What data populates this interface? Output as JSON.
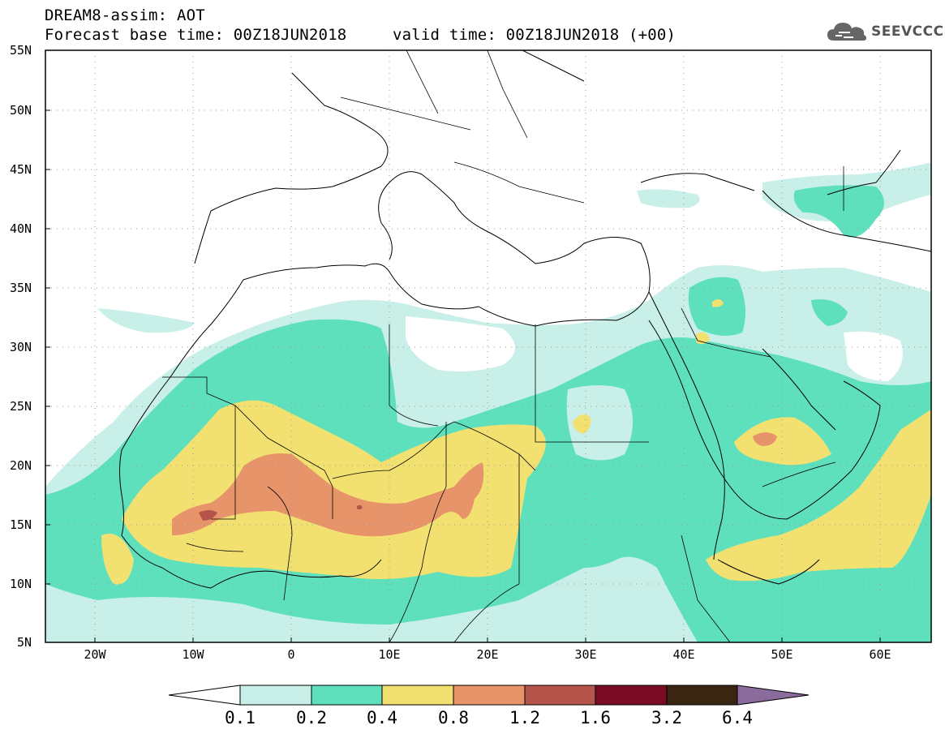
{
  "header": {
    "title": "DREAM8-assim: AOT",
    "forecast_base": "Forecast base time: 00Z18JUN2018",
    "valid_time": "valid time: 00Z18JUN2018 (+00)"
  },
  "logo": {
    "text": "SEEVCCC",
    "icon": "cloud-icon"
  },
  "axes": {
    "lat_labels": [
      "55N",
      "50N",
      "45N",
      "40N",
      "35N",
      "30N",
      "25N",
      "20N",
      "15N",
      "10N",
      "5N"
    ],
    "lon_labels": [
      "20W",
      "10W",
      "0",
      "10E",
      "20E",
      "30E",
      "40E",
      "50E",
      "60E"
    ],
    "lat_range": [
      5,
      55
    ],
    "lon_range": [
      -25,
      65
    ]
  },
  "colorbar": {
    "labels": [
      "0.1",
      "0.2",
      "0.4",
      "0.8",
      "1.2",
      "1.6",
      "3.2",
      "6.4"
    ],
    "colors": [
      "#ffffff",
      "#c8efe8",
      "#5fe0bd",
      "#f2e170",
      "#e8946a",
      "#b5544a",
      "#7a0c26",
      "#3a2412",
      "#8b6a9c"
    ]
  },
  "colors": {
    "c1": "#c8efe8",
    "c2": "#5fe0bd",
    "c3": "#f2e170",
    "c4": "#e8946a",
    "c5": "#b5544a"
  }
}
